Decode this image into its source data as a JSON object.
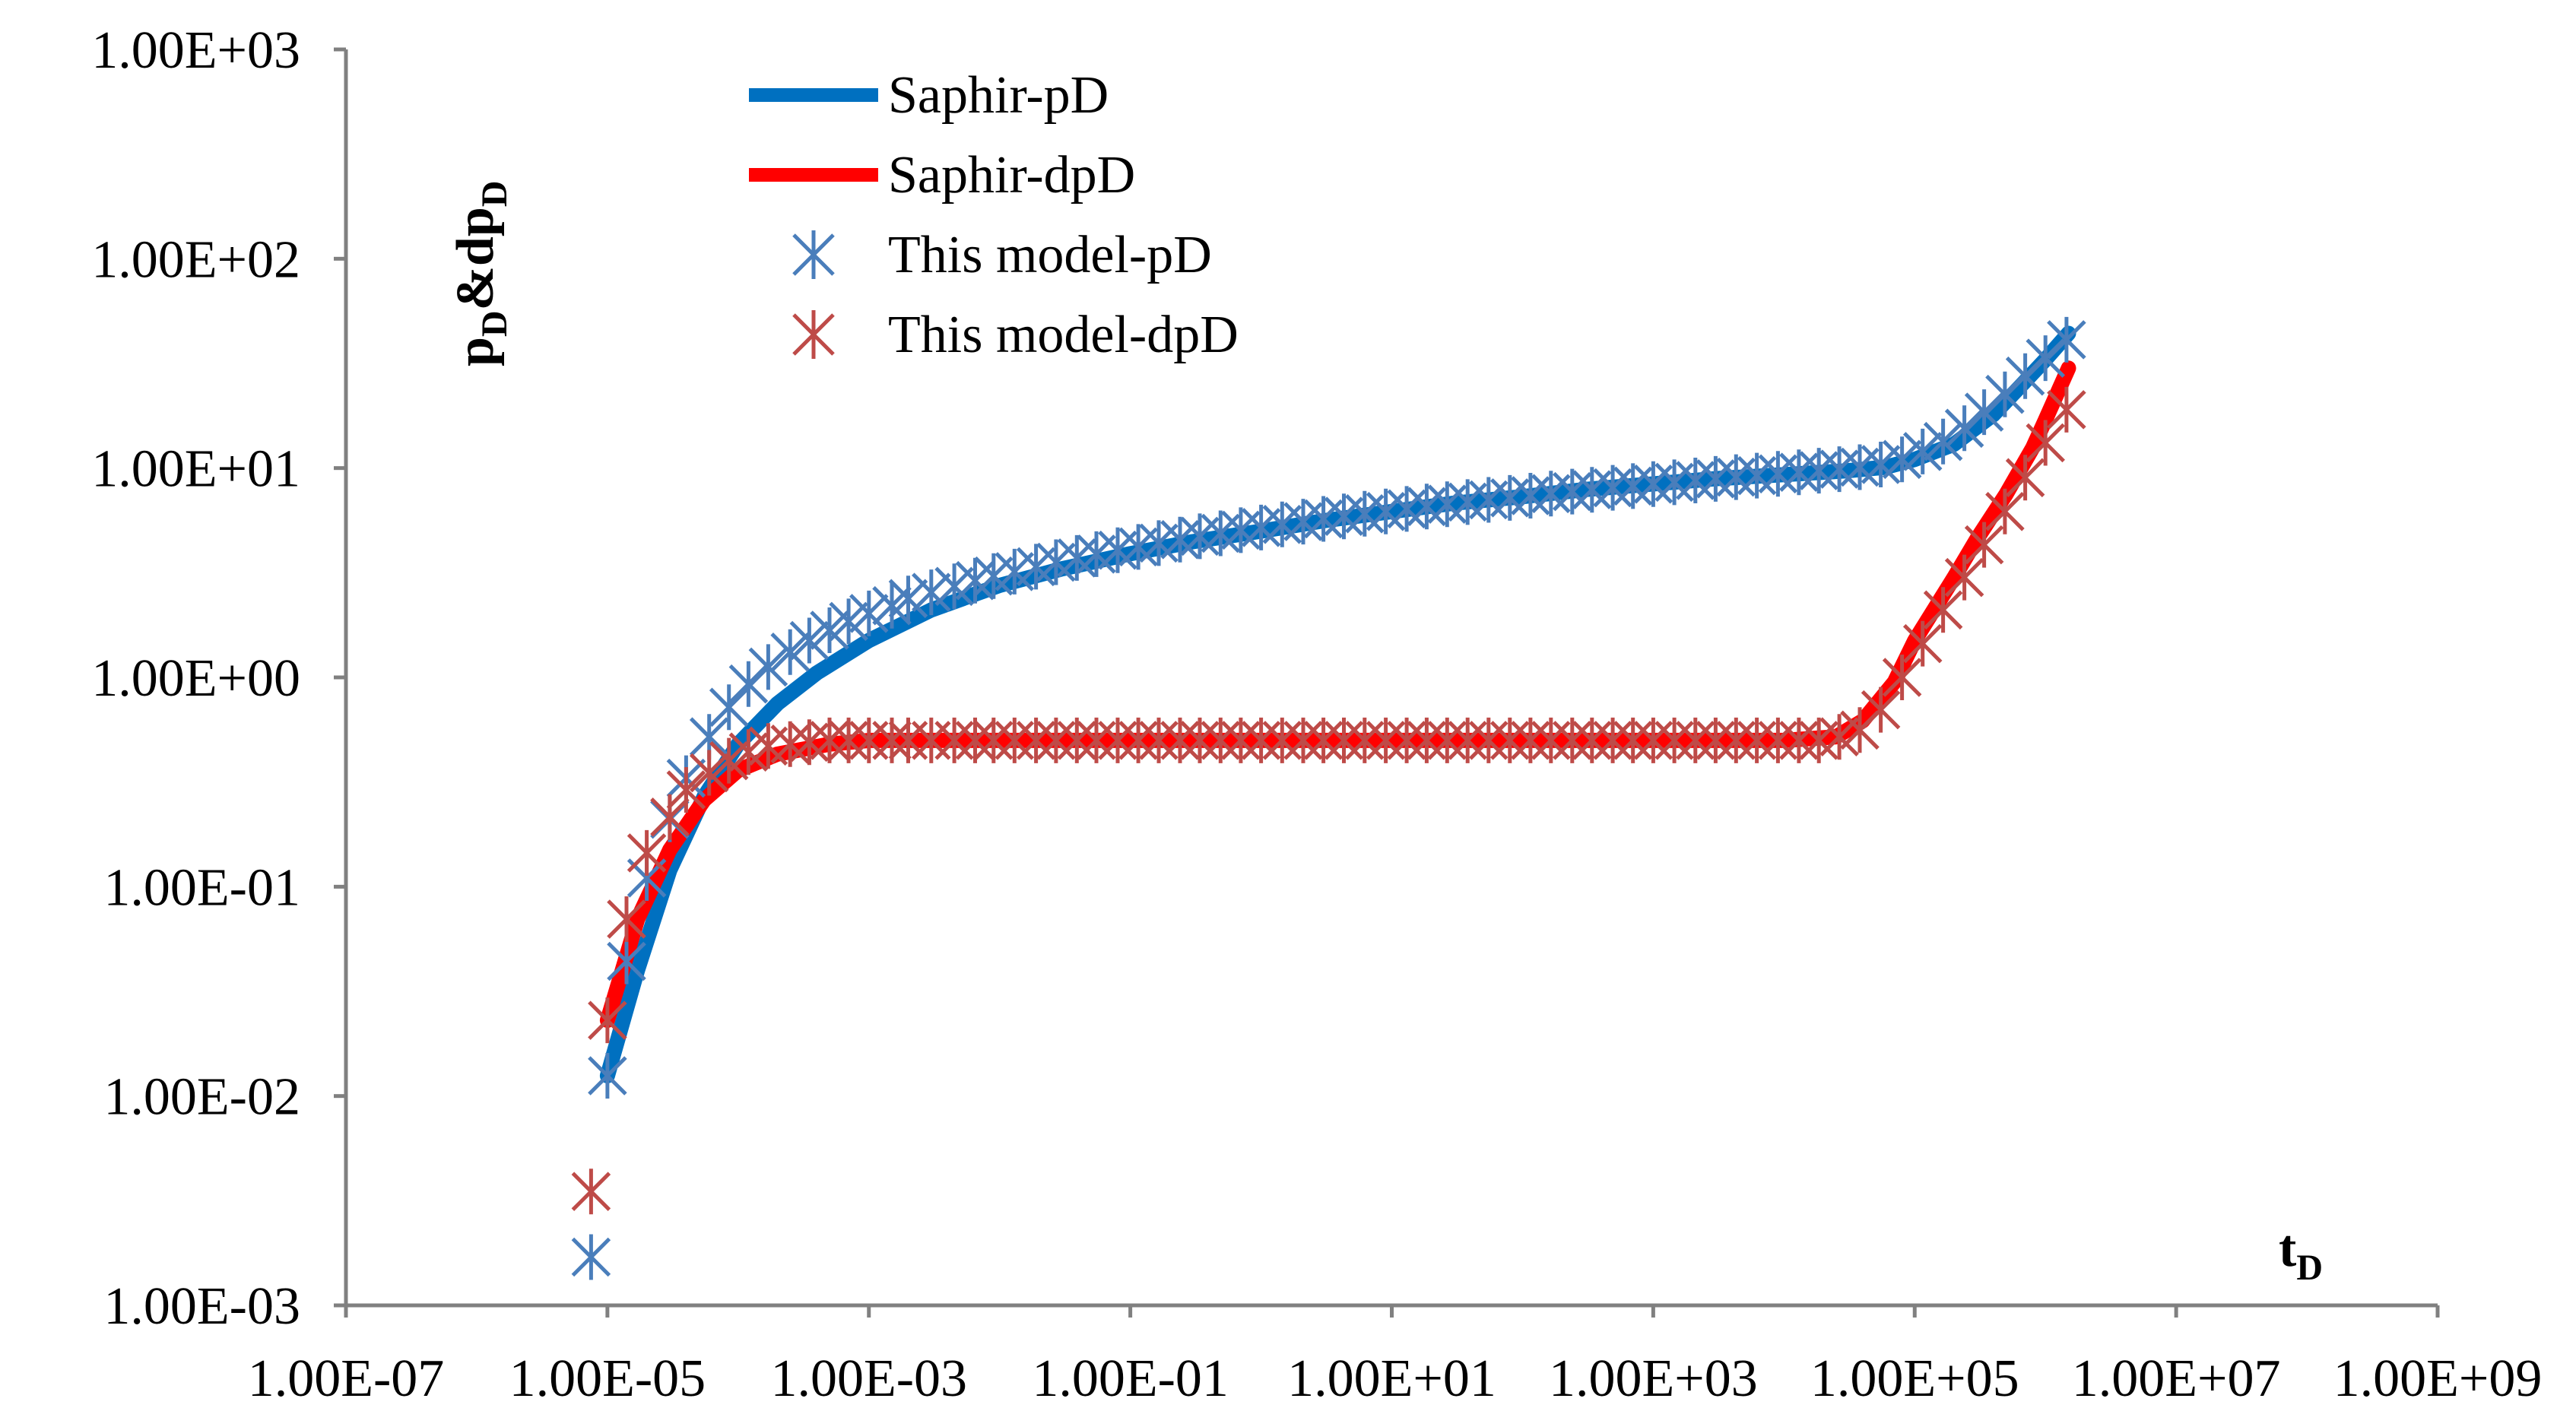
{
  "chart_data": {
    "type": "scatter",
    "title": "",
    "xlabel": "t",
    "xlabel_sub": "D",
    "ylabel_parts": [
      {
        "text": "p",
        "sub": false
      },
      {
        "text": "D",
        "sub": true
      },
      {
        "text": "&dp",
        "sub": false
      },
      {
        "text": "D",
        "sub": true
      }
    ],
    "xscale": "log",
    "yscale": "log",
    "xlim": [
      1e-07,
      1000000000.0
    ],
    "ylim": [
      0.001,
      1000.0
    ],
    "x_ticks": [
      1e-07,
      1e-05,
      0.001,
      0.1,
      10.0,
      1000.0,
      100000.0,
      10000000.0,
      1000000000.0
    ],
    "x_tick_labels": [
      "1.00E-07",
      "1.00E-05",
      "1.00E-03",
      "1.00E-01",
      "1.00E+01",
      "1.00E+03",
      "1.00E+05",
      "1.00E+07",
      "1.00E+09"
    ],
    "y_ticks": [
      1000.0,
      100.0,
      10.0,
      1.0,
      0.1,
      0.01,
      0.001
    ],
    "y_tick_labels": [
      "1.00E+03",
      "1.00E+02",
      "1.00E+01",
      "1.00E+00",
      "1.00E-01",
      "1.00E-02",
      "1.00E-03"
    ],
    "grid": false,
    "legend_position": "top-left",
    "colors": {
      "saphir_pd": "#0070c0",
      "saphir_dpd": "#ff0000",
      "model_pd": "#4a7ebb",
      "model_dpd": "#be4b48",
      "axis": "#808080"
    },
    "series": [
      {
        "name": "Saphir-pD",
        "kind": "line",
        "color_key": "saphir_pd",
        "points": [
          [
            1e-05,
            0.0125
          ],
          [
            1.7e-05,
            0.04
          ],
          [
            3e-05,
            0.12
          ],
          [
            5.5e-05,
            0.27
          ],
          [
            0.0001,
            0.48
          ],
          [
            0.0002,
            0.75
          ],
          [
            0.0004,
            1.05
          ],
          [
            0.001,
            1.5
          ],
          [
            0.003,
            2.1
          ],
          [
            0.01,
            2.75
          ],
          [
            0.03,
            3.3
          ],
          [
            0.1,
            3.9
          ],
          [
            0.3,
            4.45
          ],
          [
            1,
            5.0
          ],
          [
            3,
            5.6
          ],
          [
            10,
            6.2
          ],
          [
            30,
            6.8
          ],
          [
            100,
            7.3
          ],
          [
            300,
            7.9
          ],
          [
            1000,
            8.4
          ],
          [
            3000,
            8.9
          ],
          [
            10000,
            9.3
          ],
          [
            30000,
            9.7
          ],
          [
            60000,
            10.1
          ],
          [
            100000,
            11
          ],
          [
            200000,
            13
          ],
          [
            400000,
            18
          ],
          [
            700000,
            26
          ],
          [
            1000000,
            33
          ],
          [
            1500000,
            44
          ]
        ]
      },
      {
        "name": "Saphir-dpD",
        "kind": "line",
        "color_key": "saphir_dpd",
        "points": [
          [
            1e-05,
            0.023
          ],
          [
            1.7e-05,
            0.07
          ],
          [
            3e-05,
            0.15
          ],
          [
            5.5e-05,
            0.26
          ],
          [
            0.0001,
            0.36
          ],
          [
            0.0002,
            0.43
          ],
          [
            0.0005,
            0.48
          ],
          [
            0.001,
            0.5
          ],
          [
            0.01,
            0.5
          ],
          [
            0.1,
            0.5
          ],
          [
            1,
            0.5
          ],
          [
            10,
            0.5
          ],
          [
            100,
            0.5
          ],
          [
            1000,
            0.5
          ],
          [
            10000,
            0.5
          ],
          [
            25000,
            0.52
          ],
          [
            40000,
            0.62
          ],
          [
            70000,
            0.95
          ],
          [
            100000,
            1.5
          ],
          [
            200000,
            3
          ],
          [
            300000,
            4.6
          ],
          [
            500000,
            7.5
          ],
          [
            800000,
            12.5
          ],
          [
            1000000,
            17
          ],
          [
            1500000,
            30
          ]
        ]
      },
      {
        "name": "This model-pD",
        "kind": "markers",
        "color_key": "model_pd",
        "points": [
          [
            7.5e-06,
            0.0017
          ],
          [
            1e-05,
            0.0125
          ],
          [
            1.4e-05,
            0.044
          ],
          [
            2e-05,
            0.11
          ],
          [
            3e-05,
            0.21
          ],
          [
            4e-05,
            0.33
          ],
          [
            6e-05,
            0.52
          ],
          [
            8.5e-05,
            0.72
          ],
          [
            0.00012,
            0.93
          ],
          [
            0.00017,
            1.12
          ],
          [
            0.00025,
            1.32
          ],
          [
            0.00035,
            1.5
          ],
          [
            0.0005,
            1.68
          ],
          [
            0.0007,
            1.85
          ],
          [
            0.001,
            2.02
          ],
          [
            0.0015,
            2.2
          ],
          [
            0.002,
            2.38
          ],
          [
            0.003,
            2.55
          ],
          [
            0.0045,
            2.72
          ],
          [
            0.0065,
            2.9
          ],
          [
            0.009,
            3.05
          ],
          [
            0.013,
            3.2
          ],
          [
            0.019,
            3.38
          ],
          [
            0.027,
            3.55
          ],
          [
            0.039,
            3.72
          ],
          [
            0.055,
            3.88
          ],
          [
            0.08,
            4.05
          ],
          [
            0.115,
            4.2
          ],
          [
            0.165,
            4.38
          ],
          [
            0.24,
            4.55
          ],
          [
            0.34,
            4.72
          ],
          [
            0.49,
            4.88
          ],
          [
            0.7,
            5.05
          ],
          [
            1,
            5.2
          ],
          [
            1.45,
            5.38
          ],
          [
            2.1,
            5.55
          ],
          [
            3,
            5.72
          ],
          [
            4.3,
            5.88
          ],
          [
            6.2,
            6.05
          ],
          [
            9,
            6.2
          ],
          [
            13,
            6.38
          ],
          [
            18.5,
            6.55
          ],
          [
            26.5,
            6.72
          ],
          [
            38,
            6.88
          ],
          [
            55,
            7.05
          ],
          [
            80,
            7.2
          ],
          [
            115,
            7.38
          ],
          [
            165,
            7.55
          ],
          [
            240,
            7.72
          ],
          [
            340,
            7.88
          ],
          [
            490,
            8.05
          ],
          [
            700,
            8.2
          ],
          [
            1000,
            8.38
          ],
          [
            1450,
            8.55
          ],
          [
            2100,
            8.72
          ],
          [
            3000,
            8.88
          ],
          [
            4300,
            9.05
          ],
          [
            6200,
            9.2
          ],
          [
            9000,
            9.38
          ],
          [
            13000,
            9.55
          ],
          [
            18500,
            9.72
          ],
          [
            26500,
            9.88
          ],
          [
            38000,
            10.1
          ],
          [
            55000,
            10.4
          ],
          [
            80000,
            11
          ],
          [
            115000,
            12
          ],
          [
            165000,
            13.4
          ],
          [
            240000,
            15.5
          ],
          [
            340000,
            18.5
          ],
          [
            490000,
            22.5
          ],
          [
            700000,
            27.5
          ],
          [
            1000000,
            33.5
          ],
          [
            1450000,
            41
          ]
        ]
      },
      {
        "name": "This model-dpD",
        "kind": "markers",
        "color_key": "model_dpd",
        "points": [
          [
            7.5e-06,
            0.0035
          ],
          [
            1e-05,
            0.023
          ],
          [
            1.4e-05,
            0.07
          ],
          [
            2e-05,
            0.145
          ],
          [
            3e-05,
            0.215
          ],
          [
            4e-05,
            0.29
          ],
          [
            6e-05,
            0.35
          ],
          [
            8.5e-05,
            0.4
          ],
          [
            0.00012,
            0.44
          ],
          [
            0.00017,
            0.47
          ],
          [
            0.00025,
            0.48
          ],
          [
            0.00035,
            0.49
          ],
          [
            0.0005,
            0.5
          ],
          [
            0.0007,
            0.5
          ],
          [
            0.001,
            0.5
          ],
          [
            0.0015,
            0.5
          ],
          [
            0.002,
            0.5
          ],
          [
            0.003,
            0.5
          ],
          [
            0.0045,
            0.5
          ],
          [
            0.0065,
            0.5
          ],
          [
            0.009,
            0.5
          ],
          [
            0.013,
            0.5
          ],
          [
            0.019,
            0.5
          ],
          [
            0.027,
            0.5
          ],
          [
            0.039,
            0.5
          ],
          [
            0.055,
            0.5
          ],
          [
            0.08,
            0.5
          ],
          [
            0.115,
            0.5
          ],
          [
            0.165,
            0.5
          ],
          [
            0.24,
            0.5
          ],
          [
            0.34,
            0.5
          ],
          [
            0.49,
            0.5
          ],
          [
            0.7,
            0.5
          ],
          [
            1,
            0.5
          ],
          [
            1.45,
            0.5
          ],
          [
            2.1,
            0.5
          ],
          [
            3,
            0.5
          ],
          [
            4.3,
            0.5
          ],
          [
            6.2,
            0.5
          ],
          [
            9,
            0.5
          ],
          [
            13,
            0.5
          ],
          [
            18.5,
            0.5
          ],
          [
            26.5,
            0.5
          ],
          [
            38,
            0.5
          ],
          [
            55,
            0.5
          ],
          [
            80,
            0.5
          ],
          [
            115,
            0.5
          ],
          [
            165,
            0.5
          ],
          [
            240,
            0.5
          ],
          [
            340,
            0.5
          ],
          [
            490,
            0.5
          ],
          [
            700,
            0.5
          ],
          [
            1000,
            0.5
          ],
          [
            1450,
            0.5
          ],
          [
            2100,
            0.5
          ],
          [
            3000,
            0.5
          ],
          [
            4300,
            0.5
          ],
          [
            6200,
            0.5
          ],
          [
            9000,
            0.5
          ],
          [
            13000,
            0.5
          ],
          [
            18500,
            0.5
          ],
          [
            26500,
            0.52
          ],
          [
            38000,
            0.56
          ],
          [
            55000,
            0.7
          ],
          [
            80000,
            1.0
          ],
          [
            115000,
            1.45
          ],
          [
            165000,
            2.1
          ],
          [
            240000,
            3.0
          ],
          [
            340000,
            4.3
          ],
          [
            490000,
            6.2
          ],
          [
            700000,
            9
          ],
          [
            1000000,
            13.2
          ],
          [
            1450000,
            19
          ]
        ]
      }
    ]
  }
}
